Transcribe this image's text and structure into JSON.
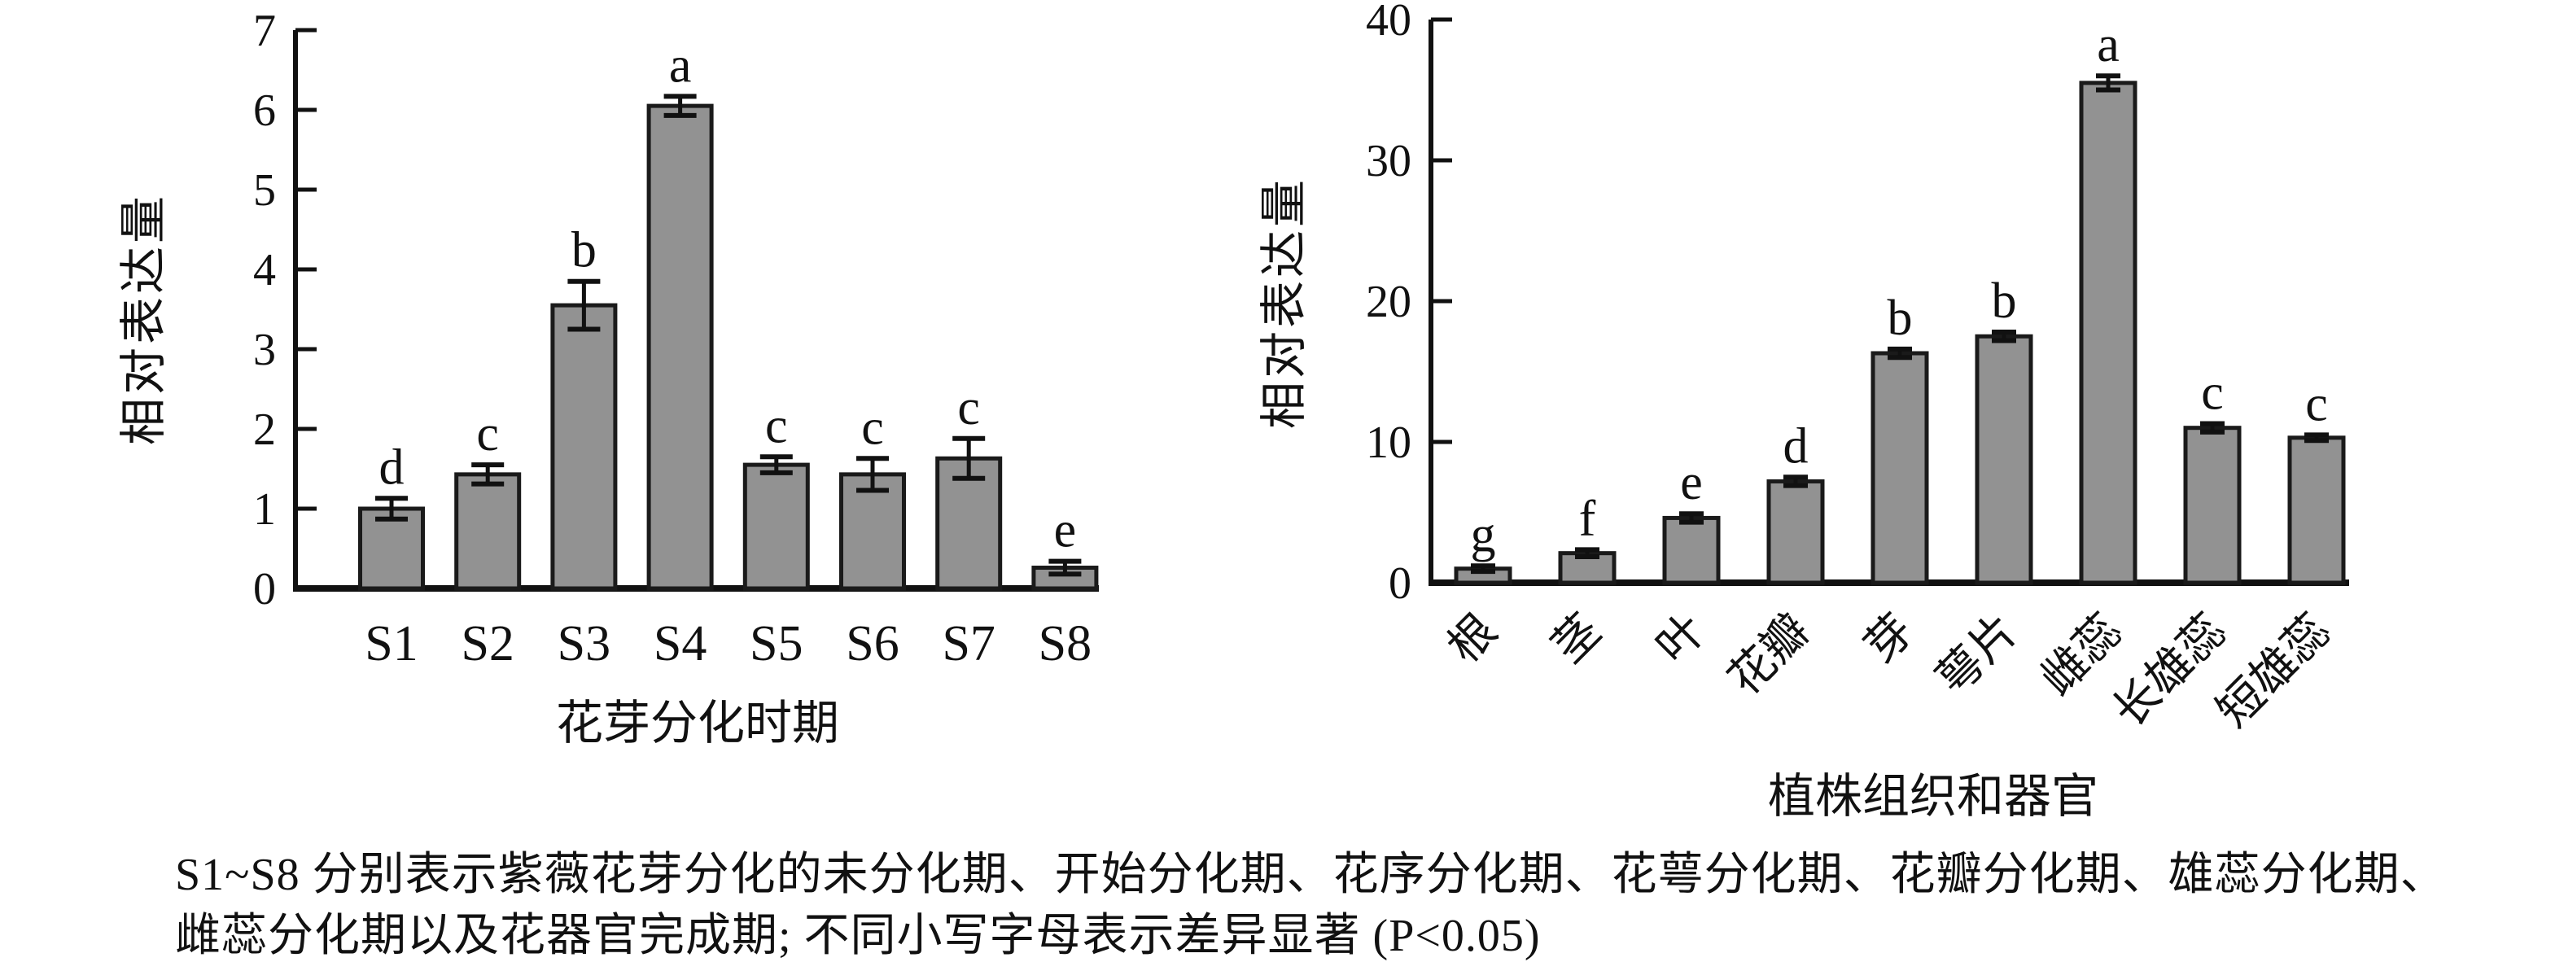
{
  "figure": {
    "background": "#ffffff",
    "bar_fill": "#929292",
    "bar_stroke": "#1a1a1a",
    "axis_color": "#111111",
    "caption_line1": "S1~S8 分别表示紫薇花芽分化的未分化期、开始分化期、花序分化期、花萼分化期、花瓣分化期、雄蕊分化期、",
    "caption_line2": "雌蕊分化期以及花器官完成期; 不同小写字母表示差异显著 (P<0.05)"
  },
  "chart_data": [
    {
      "type": "bar",
      "title": "",
      "categories": [
        "S1",
        "S2",
        "S3",
        "S4",
        "S5",
        "S6",
        "S7",
        "S8"
      ],
      "values": [
        1.0,
        1.43,
        3.55,
        6.05,
        1.55,
        1.43,
        1.63,
        0.26
      ],
      "errors": [
        0.13,
        0.12,
        0.3,
        0.12,
        0.1,
        0.2,
        0.25,
        0.08
      ],
      "sig_letters": [
        "d",
        "c",
        "b",
        "a",
        "c",
        "c",
        "c",
        "e"
      ],
      "xlabel": "花芽分化时期",
      "ylabel": "相对表达量",
      "ylim": [
        0,
        7
      ],
      "ytick_step": 1,
      "grid": false,
      "legend": null,
      "rotate_xticks": false
    },
    {
      "type": "bar",
      "title": "",
      "categories": [
        "根",
        "茎",
        "叶",
        "花瓣",
        "芽",
        "萼片",
        "雌蕊",
        "长雄蕊",
        "短雄蕊"
      ],
      "values": [
        1.0,
        2.1,
        4.6,
        7.2,
        16.3,
        17.5,
        35.5,
        11.0,
        10.3
      ],
      "errors": [
        0.2,
        0.25,
        0.3,
        0.3,
        0.3,
        0.3,
        0.5,
        0.3,
        0.2
      ],
      "sig_letters": [
        "g",
        "f",
        "e",
        "d",
        "b",
        "b",
        "a",
        "c",
        "c"
      ],
      "xlabel": "植株组织和器官",
      "ylabel": "相对表达量",
      "ylim": [
        0,
        40
      ],
      "ytick_step": 10,
      "grid": false,
      "legend": null,
      "rotate_xticks": true
    }
  ]
}
